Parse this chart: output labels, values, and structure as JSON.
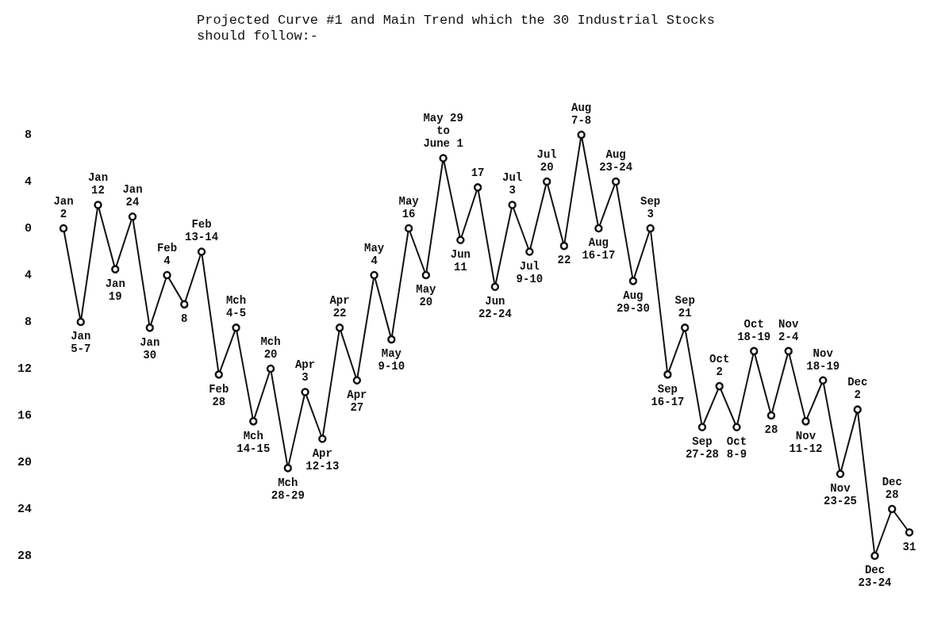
{
  "chart_data": {
    "type": "line",
    "title": "Projected Curve #1 and Main Trend which the 30 Industrial Stocks should follow:-",
    "categories": [
      "Jan\n2",
      "Jan\n5-7",
      "Jan\n12",
      "Jan\n19",
      "Jan\n24",
      "Jan\n30",
      "Feb\n4",
      "8",
      "Feb\n13-14",
      "Feb\n28",
      "Mch\n4-5",
      "Mch\n14-15",
      "Mch\n20",
      "Mch\n28-29",
      "Apr\n3",
      "Apr\n12-13",
      "Apr\n22",
      "Apr\n27",
      "May\n4",
      "May\n9-10",
      "May\n16",
      "May\n20",
      "May 29\nto\nJune 1",
      "Jun\n11",
      "17",
      "Jun\n22-24",
      "Jul\n3",
      "Jul\n9-10",
      "Jul\n20",
      "22",
      "Aug\n7-8",
      "Aug\n16-17",
      "Aug\n23-24",
      "Aug\n29-30",
      "Sep\n3",
      "Sep\n16-17",
      "Sep\n21",
      "Sep\n27-28",
      "Oct\n2",
      "Oct\n8-9",
      "Oct\n18-19",
      "28",
      "Nov\n2-4",
      "Nov\n11-12",
      "Nov\n18-19",
      "Nov\n23-25",
      "Dec\n2",
      "Dec\n23-24",
      "Dec\n28",
      "31"
    ],
    "values": [
      0,
      -8,
      2,
      -3.5,
      1,
      -8.5,
      -4,
      -6.5,
      -2,
      -12.5,
      -8.5,
      -16.5,
      -12,
      -20.5,
      -14,
      -18,
      -8.5,
      -13,
      -4,
      -9.5,
      0,
      -4,
      6,
      -1,
      3.5,
      -5,
      2,
      -2,
      4,
      -1.5,
      8,
      0,
      4,
      -4.5,
      0,
      -12.5,
      -8.5,
      -17,
      -13.5,
      -17,
      -10.5,
      -16,
      -10.5,
      -16.5,
      -13,
      -21,
      -15.5,
      -28,
      -24,
      -26
    ],
    "color": "#111111",
    "marker": "circle",
    "line_style": "solid",
    "ylim": [
      -28,
      8
    ],
    "yticks": [
      8,
      4,
      0,
      {
        "value": -4,
        "label": "4"
      },
      {
        "value": -8,
        "label": "8"
      },
      {
        "value": -12,
        "label": "12"
      },
      {
        "value": -16,
        "label": "16"
      },
      {
        "value": -20,
        "label": "20"
      },
      {
        "value": -24,
        "label": "24"
      },
      {
        "value": -28,
        "label": "28"
      }
    ],
    "tick_labels": "y"
  }
}
